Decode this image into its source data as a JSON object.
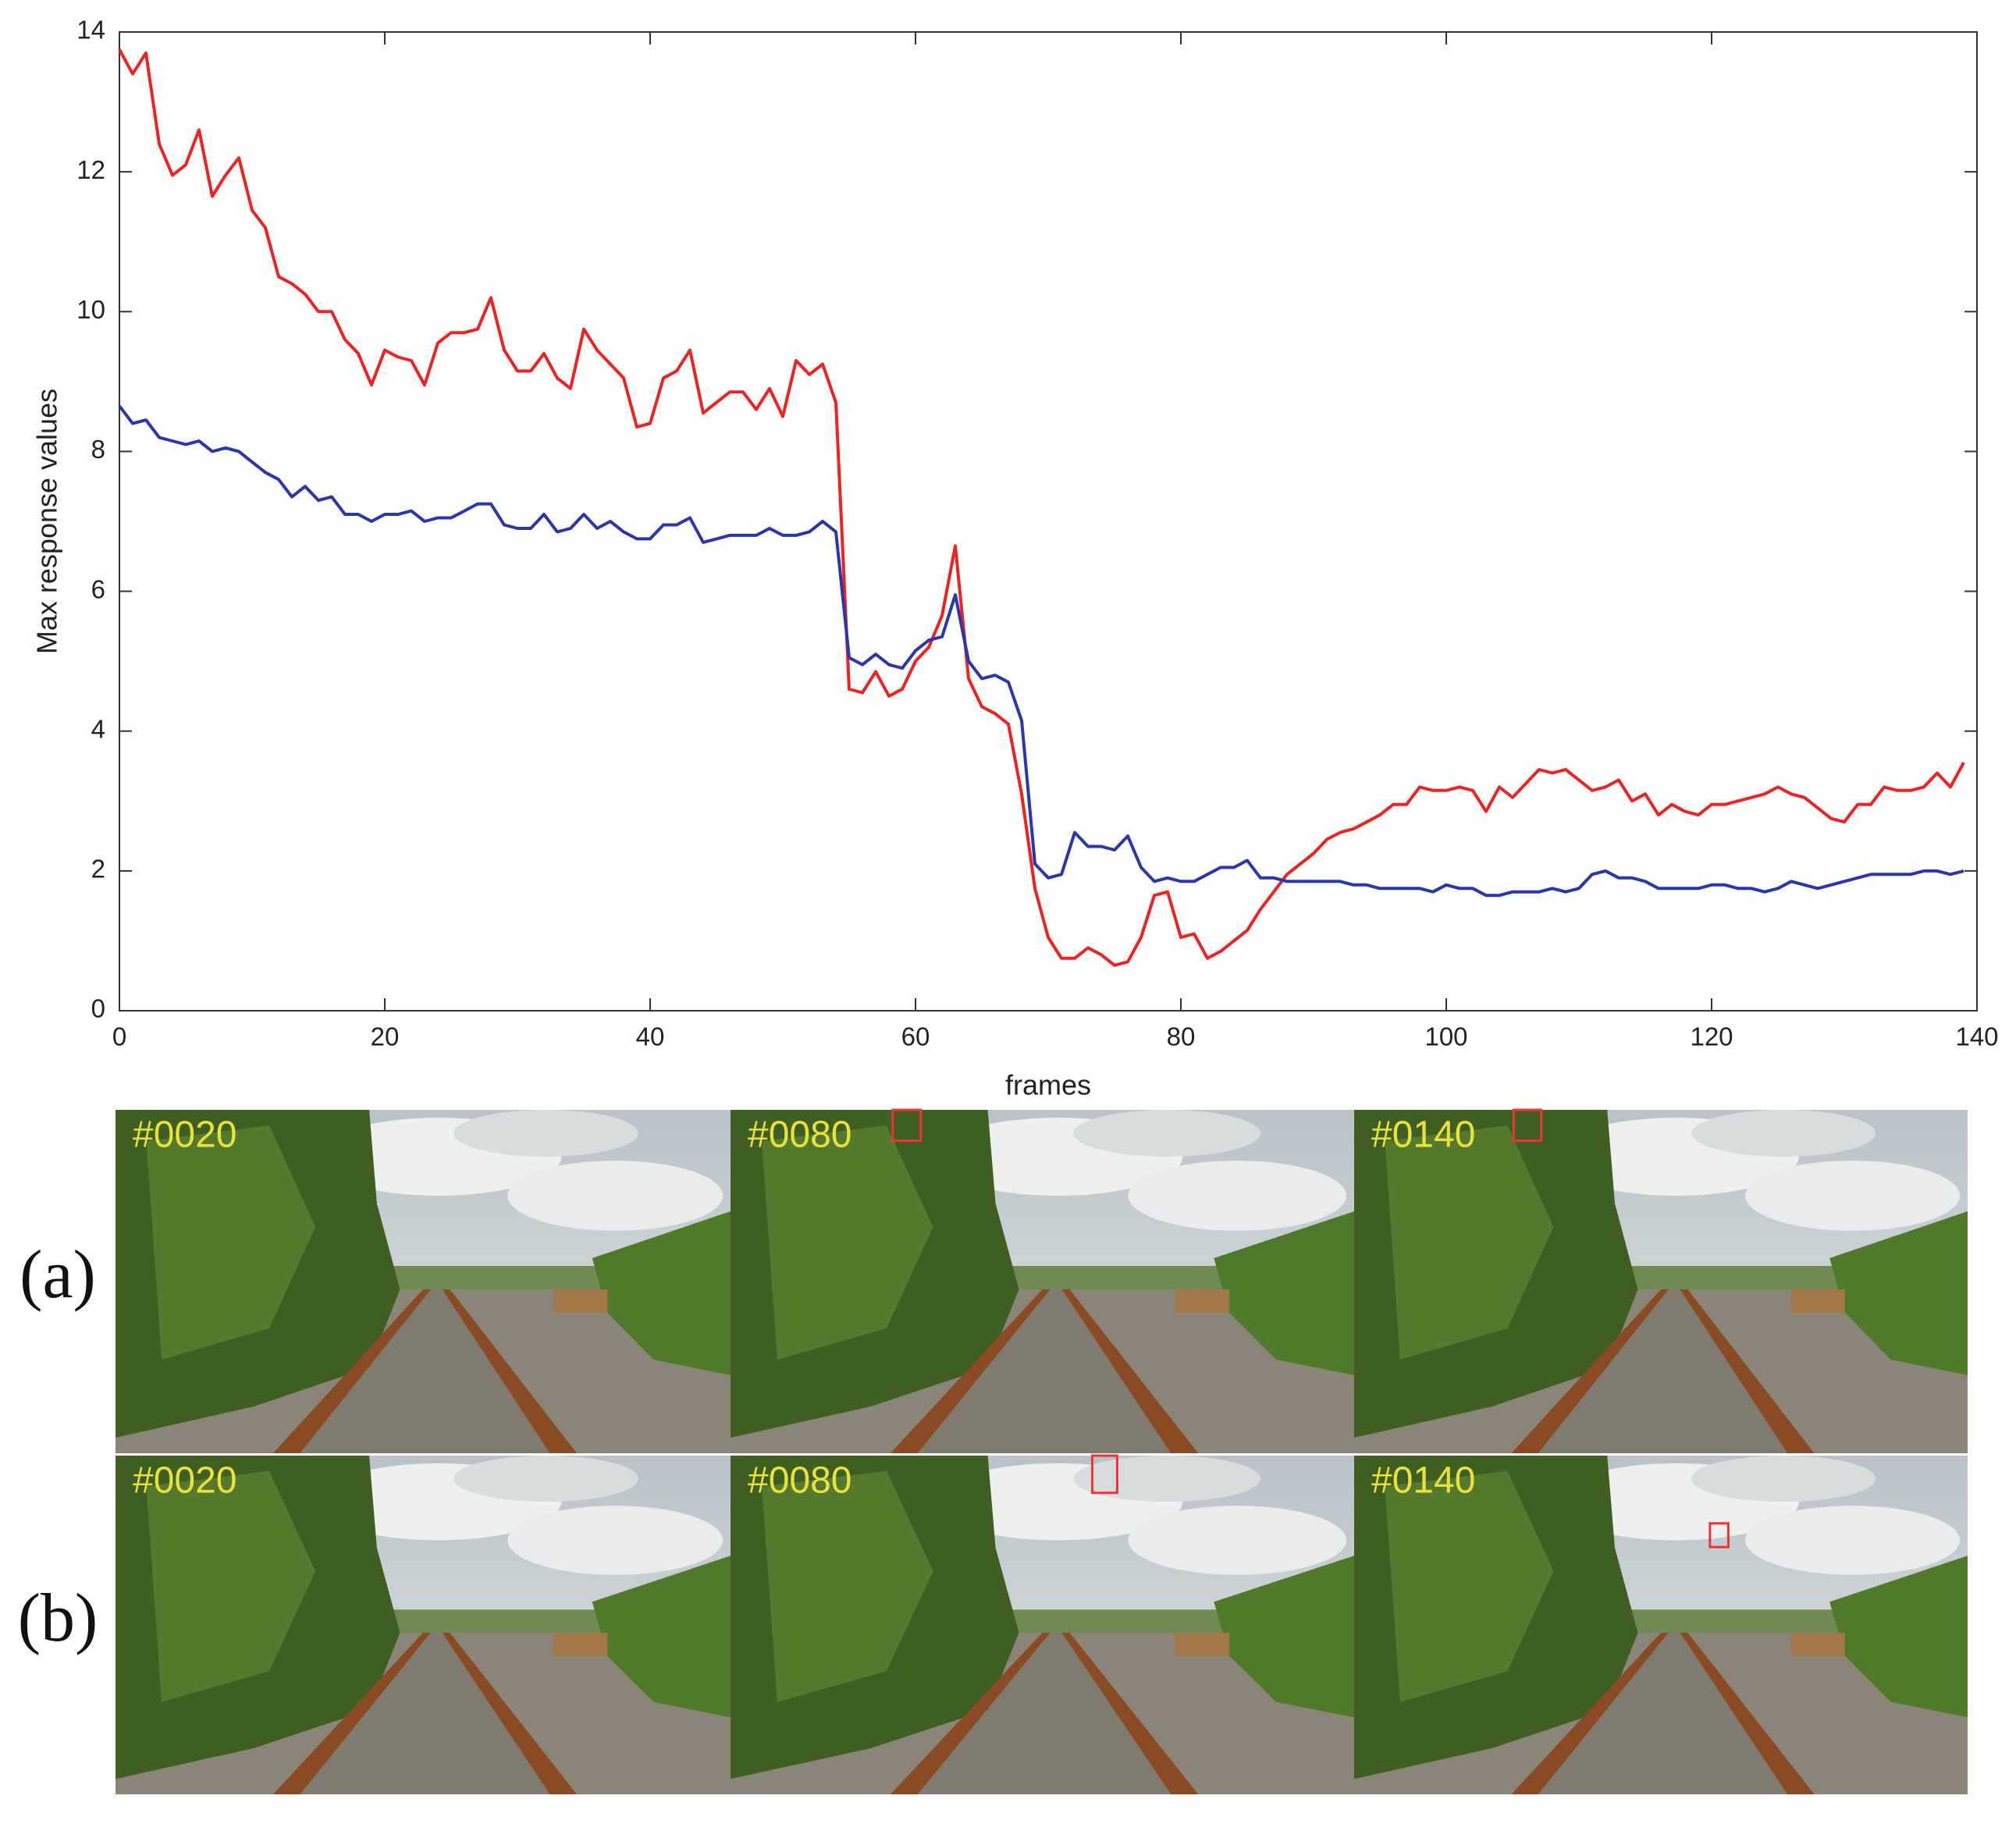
{
  "chart_data": {
    "type": "line",
    "xlabel": "frames",
    "ylabel": "Max response values",
    "x": [
      0,
      1,
      2,
      3,
      4,
      5,
      6,
      7,
      8,
      9,
      10,
      11,
      12,
      13,
      14,
      15,
      16,
      17,
      18,
      19,
      20,
      21,
      22,
      23,
      24,
      25,
      26,
      27,
      28,
      29,
      30,
      31,
      32,
      33,
      34,
      35,
      36,
      37,
      38,
      39,
      40,
      41,
      42,
      43,
      44,
      45,
      46,
      47,
      48,
      49,
      50,
      51,
      52,
      53,
      54,
      55,
      56,
      57,
      58,
      59,
      60,
      61,
      62,
      63,
      64,
      65,
      66,
      67,
      68,
      69,
      70,
      71,
      72,
      73,
      74,
      75,
      76,
      77,
      78,
      79,
      80,
      81,
      82,
      83,
      84,
      85,
      86,
      87,
      88,
      89,
      90,
      91,
      92,
      93,
      94,
      95,
      96,
      97,
      98,
      99,
      100,
      101,
      102,
      103,
      104,
      105,
      106,
      107,
      108,
      109,
      110,
      111,
      112,
      113,
      114,
      115,
      116,
      117,
      118,
      119,
      120,
      121,
      122,
      123,
      124,
      125,
      126,
      127,
      128,
      129,
      130,
      131,
      132,
      133,
      134,
      135,
      136,
      137,
      138,
      139
    ],
    "series": [
      {
        "color": "#ee2222",
        "values": [
          13.75,
          13.4,
          13.7,
          12.4,
          11.95,
          12.1,
          12.6,
          11.65,
          11.95,
          12.2,
          11.45,
          11.2,
          10.5,
          10.4,
          10.25,
          10.0,
          10.0,
          9.6,
          9.4,
          8.95,
          9.45,
          9.35,
          9.3,
          8.95,
          9.55,
          9.7,
          9.7,
          9.75,
          10.2,
          9.45,
          9.15,
          9.15,
          9.4,
          9.05,
          8.9,
          9.75,
          9.45,
          9.25,
          9.05,
          8.35,
          8.4,
          9.05,
          9.15,
          9.45,
          8.55,
          8.7,
          8.85,
          8.85,
          8.6,
          8.9,
          8.5,
          9.3,
          9.1,
          9.25,
          8.7,
          4.6,
          4.55,
          4.85,
          4.5,
          4.6,
          5.0,
          5.2,
          5.65,
          6.65,
          4.75,
          4.35,
          4.25,
          4.1,
          3.1,
          1.75,
          1.05,
          0.75,
          0.75,
          0.9,
          0.8,
          0.65,
          0.7,
          1.05,
          1.65,
          1.7,
          1.05,
          1.1,
          0.75,
          0.85,
          1.0,
          1.15,
          1.45,
          1.7,
          1.95,
          2.1,
          2.25,
          2.45,
          2.55,
          2.6,
          2.7,
          2.8,
          2.95,
          2.95,
          3.2,
          3.15,
          3.15,
          3.2,
          3.15,
          2.85,
          3.2,
          3.05,
          3.25,
          3.45,
          3.4,
          3.45,
          3.3,
          3.15,
          3.2,
          3.3,
          3.0,
          3.1,
          2.8,
          2.95,
          2.85,
          2.8,
          2.95,
          2.95,
          3.0,
          3.05,
          3.1,
          3.2,
          3.1,
          3.05,
          2.9,
          2.75,
          2.7,
          2.95,
          2.95,
          3.2,
          3.15,
          3.15,
          3.2,
          3.4,
          3.2,
          3.55
        ]
      },
      {
        "color": "#2b35b0",
        "values": [
          8.65,
          8.4,
          8.45,
          8.2,
          8.15,
          8.1,
          8.15,
          8.0,
          8.05,
          8.0,
          7.85,
          7.7,
          7.6,
          7.35,
          7.5,
          7.3,
          7.35,
          7.1,
          7.1,
          7.0,
          7.1,
          7.1,
          7.15,
          7.0,
          7.05,
          7.05,
          7.15,
          7.25,
          7.25,
          6.95,
          6.9,
          6.9,
          7.1,
          6.85,
          6.9,
          7.1,
          6.9,
          7.0,
          6.85,
          6.75,
          6.75,
          6.95,
          6.95,
          7.05,
          6.7,
          6.75,
          6.8,
          6.8,
          6.8,
          6.9,
          6.8,
          6.8,
          6.85,
          7.0,
          6.85,
          5.05,
          4.95,
          5.1,
          4.95,
          4.9,
          5.15,
          5.3,
          5.35,
          5.95,
          5.0,
          4.75,
          4.8,
          4.7,
          4.15,
          2.1,
          1.9,
          1.95,
          2.55,
          2.35,
          2.35,
          2.3,
          2.5,
          2.05,
          1.85,
          1.9,
          1.85,
          1.85,
          1.95,
          2.05,
          2.05,
          2.15,
          1.9,
          1.9,
          1.85,
          1.85,
          1.85,
          1.85,
          1.85,
          1.8,
          1.8,
          1.75,
          1.75,
          1.75,
          1.75,
          1.7,
          1.8,
          1.75,
          1.75,
          1.65,
          1.65,
          1.7,
          1.7,
          1.7,
          1.75,
          1.7,
          1.75,
          1.95,
          2.0,
          1.9,
          1.9,
          1.85,
          1.75,
          1.75,
          1.75,
          1.75,
          1.8,
          1.8,
          1.75,
          1.75,
          1.7,
          1.75,
          1.85,
          1.8,
          1.75,
          1.8,
          1.85,
          1.9,
          1.95,
          1.95,
          1.95,
          1.95,
          2.0,
          2.0,
          1.95,
          2.0
        ]
      }
    ],
    "xlim": [
      0,
      140
    ],
    "xticks": [
      0,
      20,
      40,
      60,
      80,
      100,
      120,
      140
    ],
    "ylim": [
      0,
      14
    ],
    "yticks": [
      0,
      2,
      4,
      6,
      8,
      10,
      12,
      14
    ],
    "grid": false
  },
  "image_grid": {
    "rows": [
      {
        "label": "(a)",
        "frames": [
          "#0020",
          "#0080",
          "#0140"
        ]
      },
      {
        "label": "(b)",
        "frames": [
          "#0020",
          "#0080",
          "#0140"
        ]
      }
    ]
  }
}
